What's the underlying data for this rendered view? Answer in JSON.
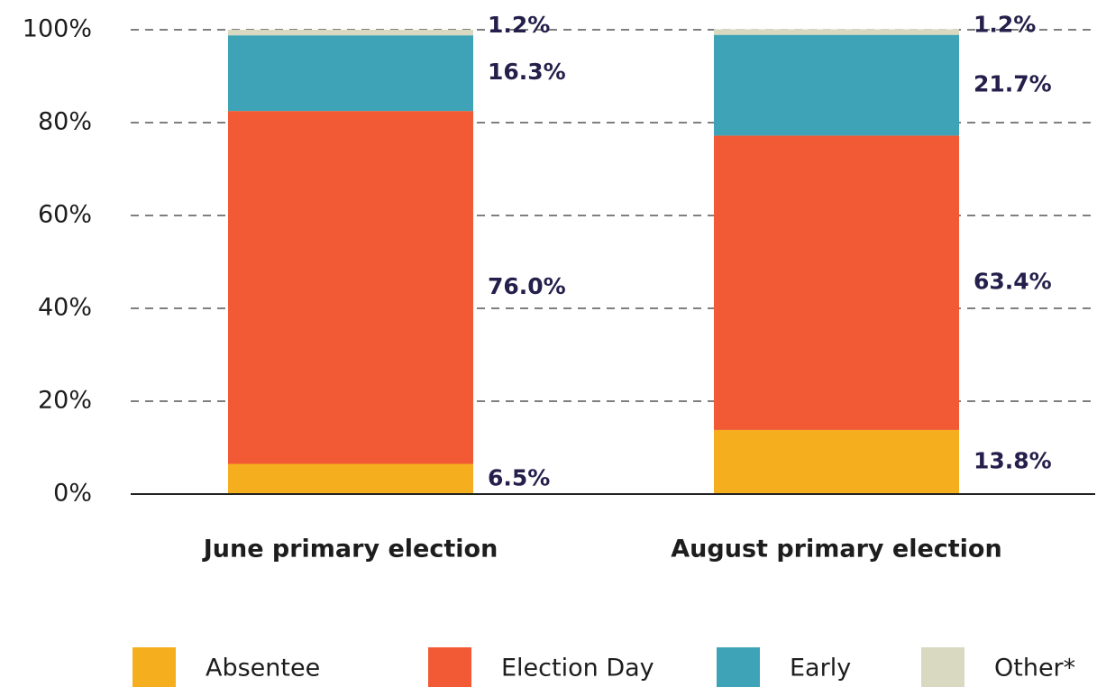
{
  "chart_data": {
    "type": "stacked_bar",
    "categories": [
      "June primary election",
      "August primary election"
    ],
    "series": [
      {
        "name": "Absentee",
        "color": "#f5ae1e",
        "values": [
          6.5,
          13.8
        ],
        "value_labels": [
          "6.5%",
          "13.8%"
        ]
      },
      {
        "name": "Election Day",
        "color": "#f15a34",
        "values": [
          76.0,
          63.4
        ],
        "value_labels": [
          "76.0%",
          "63.4%"
        ]
      },
      {
        "name": "Early",
        "color": "#3ea3b6",
        "values": [
          16.3,
          21.7
        ],
        "value_labels": [
          "16.3%",
          "21.7%"
        ]
      },
      {
        "name": "Other*",
        "color": "#d9d8c0",
        "values": [
          1.2,
          1.2
        ],
        "value_labels": [
          "1.2%",
          "1.2%"
        ]
      }
    ],
    "ylim": [
      0,
      100
    ],
    "yticks": [
      {
        "value": 0,
        "label": "0%"
      },
      {
        "value": 20,
        "label": "20%"
      },
      {
        "value": 40,
        "label": "40%"
      },
      {
        "value": 60,
        "label": "60%"
      },
      {
        "value": 80,
        "label": "80%"
      },
      {
        "value": 100,
        "label": "100%"
      }
    ],
    "grid": true,
    "legend": "bottom"
  }
}
